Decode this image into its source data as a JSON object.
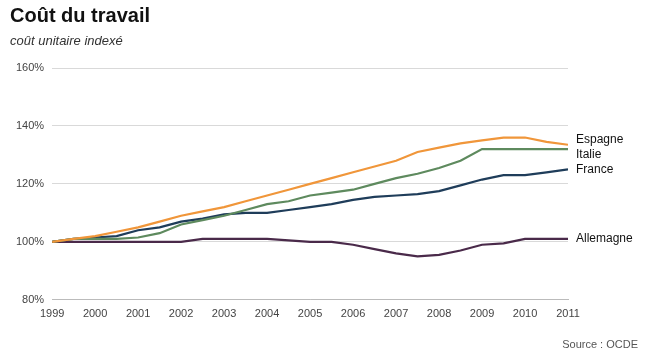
{
  "chart_data": {
    "type": "line",
    "title": "Coût du travail",
    "subtitle": "coût unitaire indexé",
    "source": "Source : OCDE",
    "x": [
      1999,
      1999.5,
      2000,
      2000.5,
      2001,
      2001.5,
      2002,
      2002.5,
      2003,
      2003.5,
      2004,
      2004.5,
      2005,
      2005.5,
      2006,
      2006.5,
      2007,
      2007.5,
      2008,
      2008.5,
      2009,
      2009.5,
      2010,
      2010.5,
      2011
    ],
    "series": [
      {
        "name": "Espagne",
        "color": "#f0963a",
        "values": [
          100,
          101,
          102,
          103.5,
          105,
          107,
          109,
          110.5,
          112,
          114,
          116,
          118,
          120,
          122,
          124,
          126,
          128,
          131,
          132.5,
          134,
          135,
          136,
          136,
          134.5,
          133.5
        ]
      },
      {
        "name": "Italie",
        "color": "#5e8a5e",
        "values": [
          100,
          101,
          101,
          101,
          101.5,
          103,
          106,
          107.5,
          109,
          111,
          113,
          114,
          116,
          117,
          118,
          120,
          122,
          123.5,
          125.5,
          128,
          132,
          132,
          132,
          132,
          132
        ]
      },
      {
        "name": "France",
        "color": "#1f3d5a",
        "values": [
          100,
          101,
          101.5,
          102,
          104,
          105,
          107,
          108,
          109.5,
          110,
          110,
          111,
          112,
          113,
          114.5,
          115.5,
          116,
          116.5,
          117.5,
          119.5,
          121.5,
          123,
          123,
          124,
          125
        ]
      },
      {
        "name": "Allemagne",
        "color": "#4a2a4a",
        "values": [
          100,
          100,
          100,
          100,
          100,
          100,
          100,
          101,
          101,
          101,
          101,
          100.5,
          100,
          100,
          99,
          97.5,
          96,
          95,
          95.5,
          97,
          99,
          99.5,
          101,
          101,
          101
        ]
      }
    ],
    "xlim": [
      1999,
      2011
    ],
    "xticks": [
      1999,
      2000,
      2001,
      2002,
      2003,
      2004,
      2005,
      2006,
      2007,
      2008,
      2009,
      2010,
      2011
    ],
    "ylim": [
      80,
      160
    ],
    "yticks": [
      {
        "value": 80,
        "label": "80%"
      },
      {
        "value": 100,
        "label": "100%"
      },
      {
        "value": 120,
        "label": "120%"
      },
      {
        "value": 140,
        "label": "140%"
      },
      {
        "value": 160,
        "label": "160%"
      }
    ],
    "grid": true
  }
}
